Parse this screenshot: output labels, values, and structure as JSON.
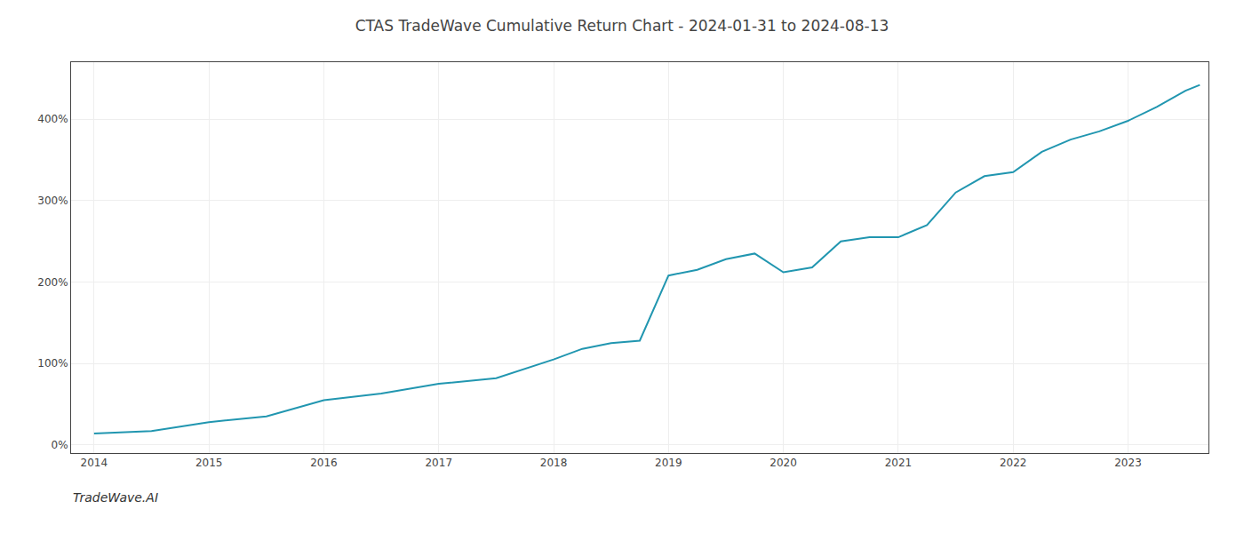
{
  "chart_data": {
    "type": "line",
    "title": "CTAS TradeWave Cumulative Return Chart - 2024-01-31 to 2024-08-13",
    "annotations": [
      "TradeWave.AI"
    ],
    "x": [
      2014,
      2014.5,
      2015,
      2015.5,
      2016,
      2016.5,
      2017,
      2017.5,
      2018,
      2018.25,
      2018.5,
      2018.75,
      2019,
      2019.25,
      2019.5,
      2019.75,
      2020,
      2020.25,
      2020.5,
      2020.75,
      2021,
      2021.25,
      2021.5,
      2021.75,
      2022,
      2022.25,
      2022.5,
      2022.75,
      2023,
      2023.25,
      2023.5,
      2023.625
    ],
    "values": [
      14,
      17,
      28,
      35,
      55,
      63,
      75,
      82,
      105,
      118,
      125,
      128,
      208,
      215,
      228,
      235,
      212,
      218,
      250,
      255,
      255,
      270,
      310,
      330,
      335,
      360,
      375,
      385,
      398,
      415,
      435,
      442
    ],
    "color": "#2196b0",
    "xlim": [
      2013.8,
      2023.7
    ],
    "ylim": [
      -10,
      470
    ],
    "xticks": [
      2014,
      2015,
      2016,
      2017,
      2018,
      2019,
      2020,
      2021,
      2022,
      2023
    ],
    "yticks": [
      {
        "value": 0,
        "label": "0%"
      },
      {
        "value": 100,
        "label": "100%"
      },
      {
        "value": 200,
        "label": "200%"
      },
      {
        "value": 300,
        "label": "300%"
      },
      {
        "value": 400,
        "label": "400%"
      }
    ],
    "grid": true
  }
}
